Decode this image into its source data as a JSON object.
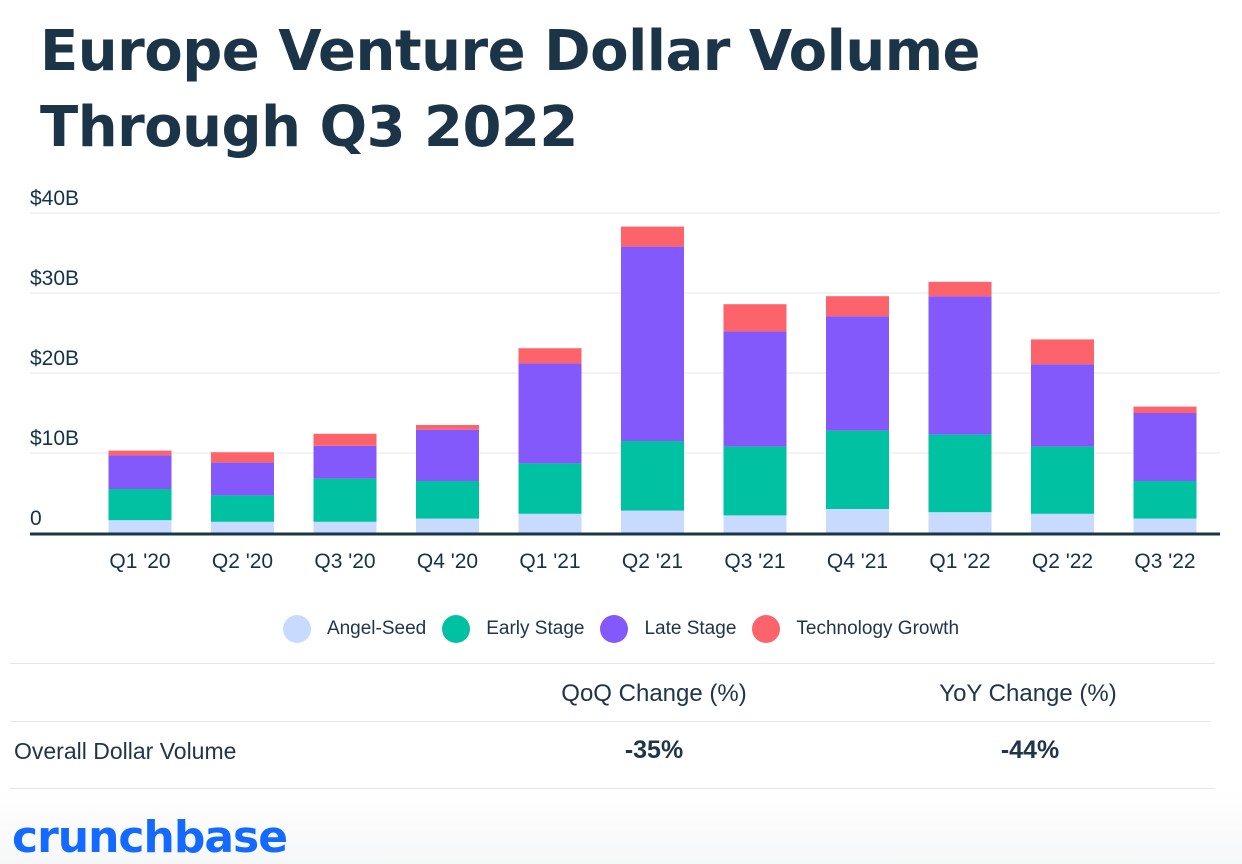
{
  "title": "Europe Venture Dollar Volume Through Q3 2022",
  "colors": {
    "angel_seed": "#c9daff",
    "early_stage": "#00c2a2",
    "late_stage": "#8459fb",
    "technology_growth": "#fd636b"
  },
  "chart_data": {
    "type": "bar",
    "stacked": true,
    "title": "Europe Venture Dollar Volume Through Q3 2022",
    "categories": [
      "Q1 '20",
      "Q2 '20",
      "Q3 '20",
      "Q4 '20",
      "Q1 '21",
      "Q2 '21",
      "Q3 '21",
      "Q4 '21",
      "Q1 '22",
      "Q2 '22",
      "Q3 '22"
    ],
    "series": [
      {
        "key": "angel_seed",
        "name": "Angel-Seed",
        "values": [
          1.6,
          1.4,
          1.4,
          1.8,
          2.4,
          2.8,
          2.2,
          3.0,
          2.6,
          2.4,
          1.8
        ]
      },
      {
        "key": "early_stage",
        "name": "Early Stage",
        "values": [
          3.9,
          3.3,
          5.4,
          4.7,
          6.3,
          8.7,
          8.6,
          9.8,
          9.7,
          8.4,
          4.7
        ]
      },
      {
        "key": "late_stage",
        "name": "Late Stage",
        "values": [
          4.2,
          4.1,
          4.1,
          6.4,
          12.5,
          24.3,
          14.4,
          14.3,
          17.3,
          10.3,
          8.5
        ]
      },
      {
        "key": "technology_growth",
        "name": "Technology Growth",
        "values": [
          0.6,
          1.3,
          1.5,
          0.6,
          1.9,
          2.5,
          3.4,
          2.5,
          1.8,
          3.1,
          0.8
        ]
      }
    ],
    "ylim": [
      0,
      40
    ],
    "yticks": [
      {
        "value": 0,
        "label": "0"
      },
      {
        "value": 10,
        "label": "$10B"
      },
      {
        "value": 20,
        "label": "$20B"
      },
      {
        "value": 30,
        "label": "$30B"
      },
      {
        "value": 40,
        "label": "$40B"
      }
    ],
    "xlabel": "",
    "ylabel": "",
    "legend_position": "bottom-center",
    "grid": true
  },
  "table": {
    "headers": {
      "qoq": "QoQ Change (%)",
      "yoy": "YoY Change (%)"
    },
    "row": {
      "label": "Overall Dollar Volume",
      "qoq": "-35%",
      "yoy": "-44%"
    }
  },
  "branding": {
    "logo_text": "crunchbase"
  }
}
